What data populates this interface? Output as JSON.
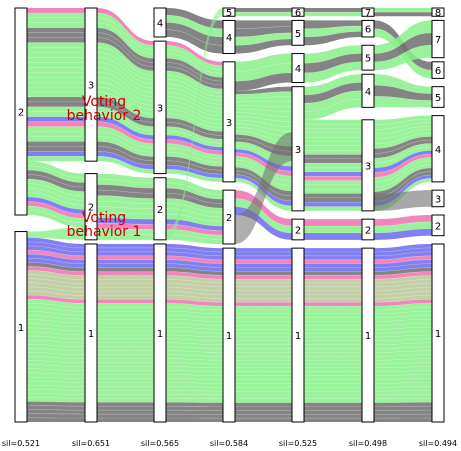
{
  "chart_data": {
    "type": "alluvial",
    "columns": [
      {
        "label": "sil=0.521",
        "nodes": [
          {
            "id": "2",
            "top": 0,
            "bottom": 0.5
          },
          {
            "id": "1",
            "top": 0.54,
            "bottom": 1.0
          }
        ]
      },
      {
        "label": "sil=0.651",
        "nodes": [
          {
            "id": "3",
            "top": 0,
            "bottom": 0.37
          },
          {
            "id": "2",
            "top": 0.4,
            "bottom": 0.56
          },
          {
            "id": "1",
            "top": 0.57,
            "bottom": 1.0
          }
        ]
      },
      {
        "label": "sil=0.565",
        "nodes": [
          {
            "id": "4",
            "top": 0,
            "bottom": 0.07
          },
          {
            "id": "3",
            "top": 0.08,
            "bottom": 0.4
          },
          {
            "id": "2",
            "top": 0.41,
            "bottom": 0.56
          },
          {
            "id": "1",
            "top": 0.57,
            "bottom": 1.0
          }
        ]
      },
      {
        "label": "sil=0.584",
        "nodes": [
          {
            "id": "5",
            "top": 0,
            "bottom": 0.02
          },
          {
            "id": "4",
            "top": 0.03,
            "bottom": 0.11
          },
          {
            "id": "3",
            "top": 0.13,
            "bottom": 0.42
          },
          {
            "id": "2",
            "top": 0.44,
            "bottom": 0.57
          },
          {
            "id": "1",
            "top": 0.58,
            "bottom": 1.0
          }
        ]
      },
      {
        "label": "sil=0.525",
        "nodes": [
          {
            "id": "6",
            "top": 0,
            "bottom": 0.02
          },
          {
            "id": "5",
            "top": 0.03,
            "bottom": 0.09
          },
          {
            "id": "4",
            "top": 0.11,
            "bottom": 0.18
          },
          {
            "id": "3",
            "top": 0.19,
            "bottom": 0.49
          },
          {
            "id": "2",
            "top": 0.51,
            "bottom": 0.56
          },
          {
            "id": "1",
            "top": 0.58,
            "bottom": 1.0
          }
        ]
      },
      {
        "label": "sil=0.498",
        "nodes": [
          {
            "id": "7",
            "top": 0,
            "bottom": 0.02
          },
          {
            "id": "6",
            "top": 0.03,
            "bottom": 0.07
          },
          {
            "id": "5",
            "top": 0.09,
            "bottom": 0.15
          },
          {
            "id": "4",
            "top": 0.16,
            "bottom": 0.24
          },
          {
            "id": "3",
            "top": 0.27,
            "bottom": 0.49
          },
          {
            "id": "2",
            "top": 0.51,
            "bottom": 0.56
          },
          {
            "id": "1",
            "top": 0.58,
            "bottom": 1.0
          }
        ]
      },
      {
        "label": "sil=0.494",
        "nodes": [
          {
            "id": "8",
            "top": 0,
            "bottom": 0.02
          },
          {
            "id": "7",
            "top": 0.03,
            "bottom": 0.12
          },
          {
            "id": "6",
            "top": 0.13,
            "bottom": 0.17
          },
          {
            "id": "5",
            "top": 0.19,
            "bottom": 0.24
          },
          {
            "id": "4",
            "top": 0.26,
            "bottom": 0.42
          },
          {
            "id": "3",
            "top": 0.44,
            "bottom": 0.48
          },
          {
            "id": "2",
            "top": 0.5,
            "bottom": 0.55
          },
          {
            "id": "1",
            "top": 0.57,
            "bottom": 1.0
          }
        ]
      }
    ],
    "annotations": [
      "Voting\nbehavior 2",
      "Voting\nbehavior 1"
    ],
    "colors": {
      "green": "#88f088",
      "gray": "#6e6e6e",
      "blue": "#6a6af0",
      "pink": "#f070b0",
      "olive": "#b8c898",
      "annotation": "#cc0000"
    }
  }
}
